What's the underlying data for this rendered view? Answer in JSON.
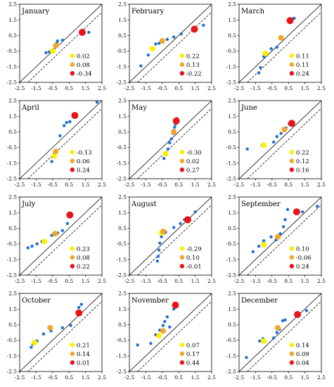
{
  "colors": {
    "small_dot": "#1f6fd1",
    "legend": [
      "#ffee00",
      "#f5a623",
      "#e8141a"
    ],
    "identity_line": "#000000",
    "dashed_line": "#000000",
    "frame": "#000000"
  },
  "chart_data": [
    {
      "type": "scatter",
      "title": "January",
      "xlim": [
        -2.5,
        2.5
      ],
      "ylim": [
        -2.5,
        2.5
      ],
      "xticks": [
        "-2.5",
        "-1.5",
        "-0.5",
        "0.5",
        "1.5",
        "2.5"
      ],
      "yticks": [
        "2.5",
        "1.5",
        "0.5",
        "-0.5",
        "-1.5",
        "-2.5"
      ],
      "small_points": [
        [
          -0.9,
          -0.6
        ],
        [
          -0.7,
          -0.55
        ],
        [
          -0.55,
          -0.5
        ],
        [
          -0.45,
          -0.4
        ],
        [
          -0.35,
          -0.1
        ],
        [
          -0.25,
          0.0
        ],
        [
          -0.2,
          0.15
        ],
        [
          0.1,
          0.2
        ],
        [
          1.7,
          0.7
        ]
      ],
      "large_points": [
        {
          "x": -0.5,
          "y": -0.5,
          "level": 0
        },
        {
          "x": -0.3,
          "y": -0.15,
          "level": 1
        },
        {
          "x": 1.3,
          "y": 0.7,
          "level": 2
        }
      ],
      "legend": [
        "0.02",
        "0.08",
        "-0.34"
      ]
    },
    {
      "type": "scatter",
      "title": "February",
      "xlim": [
        -2.5,
        2.5
      ],
      "ylim": [
        -2.5,
        2.5
      ],
      "xticks": [
        "-2.5",
        "-1.5",
        "-0.5",
        "0.5",
        "1.5",
        "2.5"
      ],
      "yticks": [
        "2.5",
        "1.5",
        "0.5",
        "-0.5",
        "-1.5",
        "-2.5"
      ],
      "small_points": [
        [
          -1.8,
          -1.45
        ],
        [
          -1.35,
          -0.75
        ],
        [
          -1.05,
          -0.35
        ],
        [
          -0.9,
          -0.05
        ],
        [
          -0.7,
          0.0
        ],
        [
          -0.2,
          0.25
        ],
        [
          0.2,
          0.4
        ],
        [
          0.65,
          0.6
        ],
        [
          1.5,
          0.9
        ],
        [
          2.0,
          1.15
        ]
      ],
      "large_points": [
        {
          "x": -1.1,
          "y": -0.35,
          "level": 0
        },
        {
          "x": -0.5,
          "y": 0.15,
          "level": 1
        },
        {
          "x": 1.45,
          "y": 0.9,
          "level": 2
        }
      ],
      "legend": [
        "0.22",
        "0.13",
        "-0.22"
      ]
    },
    {
      "type": "scatter",
      "title": "March",
      "xlim": [
        -2.5,
        2.5
      ],
      "ylim": [
        -2.5,
        2.5
      ],
      "xticks": [
        "-2.5",
        "-1.5",
        "-0.5",
        "0.5",
        "1.5",
        "2.5"
      ],
      "yticks": [
        "2.5",
        "1.5",
        "0.5",
        "-0.5",
        "-1.5",
        "-2.5"
      ],
      "small_points": [
        [
          -1.3,
          -1.9
        ],
        [
          -1.2,
          -1.55
        ],
        [
          -1.0,
          -0.85
        ],
        [
          -0.55,
          -0.35
        ],
        [
          -0.2,
          -0.25
        ],
        [
          0.1,
          0.3
        ],
        [
          0.65,
          1.35
        ],
        [
          0.75,
          1.55
        ],
        [
          0.85,
          1.6
        ]
      ],
      "large_points": [
        {
          "x": -0.9,
          "y": -0.65,
          "level": 0
        },
        {
          "x": 0.05,
          "y": 0.35,
          "level": 1
        },
        {
          "x": 0.6,
          "y": 1.45,
          "level": 2
        }
      ],
      "legend": [
        "0.11",
        "0.11",
        "0.24"
      ]
    },
    {
      "type": "scatter",
      "title": "April",
      "xlim": [
        -2.5,
        2.5
      ],
      "ylim": [
        -2.5,
        2.5
      ],
      "xticks": [
        "-2.5",
        "-1.5",
        "-0.5",
        "0.5",
        "1.5",
        "2.5"
      ],
      "yticks": [
        "2.5",
        "1.5",
        "0.5",
        "-0.5",
        "-1.5",
        "-2.5"
      ],
      "small_points": [
        [
          -0.55,
          -1.4
        ],
        [
          -0.5,
          -1.1
        ],
        [
          -0.4,
          -0.9
        ],
        [
          -0.3,
          -0.7
        ],
        [
          -0.05,
          0.25
        ],
        [
          0.2,
          0.9
        ],
        [
          0.35,
          1.1
        ],
        [
          0.55,
          1.15
        ],
        [
          2.2,
          2.4
        ]
      ],
      "large_points": [
        {
          "x": -0.4,
          "y": -1.05,
          "level": 0
        },
        {
          "x": -0.3,
          "y": -0.75,
          "level": 1
        },
        {
          "x": 0.85,
          "y": 1.55,
          "level": 2
        }
      ],
      "legend": [
        "-0.13",
        "0.06",
        "0.24"
      ]
    },
    {
      "type": "scatter",
      "title": "May",
      "xlim": [
        -2.5,
        2.5
      ],
      "ylim": [
        -2.5,
        2.5
      ],
      "xticks": [
        "-2.5",
        "-1.5",
        "-0.5",
        "0.5",
        "1.5",
        "2.5"
      ],
      "yticks": [
        "2.5",
        "1.5",
        "0.5",
        "-0.5",
        "-1.5",
        "-2.5"
      ],
      "small_points": [
        [
          -0.4,
          -1.2
        ],
        [
          -0.15,
          -0.6
        ],
        [
          -0.05,
          -0.2
        ],
        [
          0.05,
          0.05
        ],
        [
          0.15,
          0.4
        ],
        [
          0.2,
          0.6
        ],
        [
          0.25,
          0.8
        ],
        [
          0.3,
          1.0
        ],
        [
          0.35,
          1.2
        ],
        [
          0.4,
          1.35
        ]
      ],
      "large_points": [
        {
          "x": -0.3,
          "y": -0.9,
          "level": 0
        },
        {
          "x": 0.2,
          "y": 0.5,
          "level": 1
        },
        {
          "x": 0.35,
          "y": 1.2,
          "level": 2
        }
      ],
      "legend": [
        "-0.30",
        "0.02",
        "0.27"
      ]
    },
    {
      "type": "scatter",
      "title": "June",
      "xlim": [
        -2.5,
        2.5
      ],
      "ylim": [
        -2.5,
        2.5
      ],
      "xticks": [
        "-2.5",
        "-1.5",
        "-0.5",
        "0.5",
        "1.5",
        "2.5"
      ],
      "yticks": [
        "2.5",
        "1.5",
        "0.5",
        "-0.5",
        "-1.5",
        "-2.5"
      ],
      "small_points": [
        [
          -2.0,
          -0.6
        ],
        [
          -1.1,
          -0.35
        ],
        [
          -0.95,
          -0.3
        ],
        [
          -0.4,
          -0.15
        ],
        [
          -0.2,
          0.2
        ],
        [
          0.05,
          0.4
        ],
        [
          0.35,
          0.75
        ],
        [
          0.55,
          1.0
        ]
      ],
      "large_points": [
        {
          "x": -1.0,
          "y": -0.35,
          "level": 0
        },
        {
          "x": 0.25,
          "y": 0.65,
          "level": 1
        },
        {
          "x": 0.7,
          "y": 1.05,
          "level": 2
        }
      ],
      "legend": [
        "0.22",
        "0.12",
        "0.16"
      ]
    },
    {
      "type": "scatter",
      "title": "July",
      "xlim": [
        -2.5,
        2.5
      ],
      "ylim": [
        -2.5,
        2.5
      ],
      "xticks": [
        "-2.5",
        "-1.5",
        "-0.5",
        "0.5",
        "1.5",
        "2.5"
      ],
      "yticks": [
        "2.5",
        "1.5",
        "0.5",
        "-0.5",
        "-1.5",
        "-2.5"
      ],
      "small_points": [
        [
          -2.0,
          -0.75
        ],
        [
          -1.75,
          -0.65
        ],
        [
          -1.45,
          -0.5
        ],
        [
          -1.15,
          -0.35
        ],
        [
          -0.55,
          0.05
        ],
        [
          -0.2,
          0.2
        ],
        [
          0.1,
          0.35
        ],
        [
          0.4,
          0.8
        ]
      ],
      "large_points": [
        {
          "x": -1.0,
          "y": -0.35,
          "level": 0
        },
        {
          "x": -0.35,
          "y": 0.15,
          "level": 1
        },
        {
          "x": 0.55,
          "y": 1.35,
          "level": 2
        }
      ],
      "legend": [
        "0.23",
        "0.08",
        "0.22"
      ]
    },
    {
      "type": "scatter",
      "title": "August",
      "xlim": [
        -2.5,
        2.5
      ],
      "ylim": [
        -2.5,
        2.5
      ],
      "xticks": [
        "-2.5",
        "-1.5",
        "-0.5",
        "0.5",
        "1.5",
        "2.5"
      ],
      "yticks": [
        "2.5",
        "1.5",
        "0.5",
        "-0.5",
        "-1.5",
        "-2.5"
      ],
      "small_points": [
        [
          -0.8,
          -1.6
        ],
        [
          -0.75,
          -1.3
        ],
        [
          -0.7,
          -0.9
        ],
        [
          -0.65,
          -0.45
        ],
        [
          -0.55,
          -0.05
        ],
        [
          -0.4,
          0.2
        ],
        [
          -0.3,
          0.25
        ],
        [
          0.2,
          0.55
        ],
        [
          0.6,
          0.8
        ],
        [
          0.85,
          1.05
        ],
        [
          1.5,
          1.55
        ]
      ],
      "large_points": [
        {
          "x": -0.55,
          "y": 0.2,
          "level": 0
        },
        {
          "x": -0.45,
          "y": 0.3,
          "level": 1
        },
        {
          "x": 1.05,
          "y": 1.05,
          "level": 2
        }
      ],
      "legend": [
        "-0.29",
        "0.10",
        "-0.01"
      ]
    },
    {
      "type": "scatter",
      "title": "September",
      "xlim": [
        -2.5,
        2.5
      ],
      "ylim": [
        -2.5,
        2.5
      ],
      "xticks": [
        "-2.5",
        "-1.5",
        "-0.5",
        "0.5",
        "1.5",
        "2.5"
      ],
      "yticks": [
        "2.5",
        "1.5",
        "0.5",
        "-0.5",
        "-1.5",
        "-2.5"
      ],
      "small_points": [
        [
          -1.65,
          -1.0
        ],
        [
          -1.3,
          -0.65
        ],
        [
          -1.0,
          -0.3
        ],
        [
          -0.55,
          -0.05
        ],
        [
          -0.25,
          -0.25
        ],
        [
          0.0,
          0.15
        ],
        [
          0.2,
          0.6
        ],
        [
          0.3,
          1.05
        ],
        [
          0.45,
          1.7
        ],
        [
          1.35,
          1.55
        ],
        [
          2.25,
          1.9
        ]
      ],
      "large_points": [
        {
          "x": -1.0,
          "y": -0.55,
          "level": 0
        },
        {
          "x": -0.15,
          "y": -0.05,
          "level": 1
        },
        {
          "x": 1.0,
          "y": 1.55,
          "level": 2
        }
      ],
      "legend": [
        "0.10",
        "-0.06",
        "0.24"
      ]
    },
    {
      "type": "scatter",
      "title": "October",
      "xlim": [
        -2.5,
        2.5
      ],
      "ylim": [
        -2.5,
        2.5
      ],
      "xticks": [
        "-2.5",
        "-1.5",
        "-0.5",
        "0.5",
        "1.5",
        "2.5"
      ],
      "yticks": [
        "2.5",
        "1.5",
        "0.5",
        "-0.5",
        "-1.5",
        "-2.5"
      ],
      "small_points": [
        [
          -1.8,
          -0.95
        ],
        [
          -1.7,
          -0.75
        ],
        [
          -1.45,
          -0.55
        ],
        [
          -1.05,
          -0.1
        ],
        [
          -0.6,
          0.1
        ],
        [
          0.1,
          0.3
        ],
        [
          0.6,
          0.45
        ],
        [
          1.0,
          1.3
        ],
        [
          1.1,
          1.6
        ],
        [
          1.25,
          1.8
        ]
      ],
      "large_points": [
        {
          "x": -1.6,
          "y": -0.65,
          "level": 0
        },
        {
          "x": -0.65,
          "y": 0.3,
          "level": 1
        },
        {
          "x": 1.1,
          "y": 1.25,
          "level": 2
        }
      ],
      "legend": [
        "0.21",
        "0.14",
        "0.01"
      ]
    },
    {
      "type": "scatter",
      "title": "November",
      "xlim": [
        -2.5,
        2.5
      ],
      "ylim": [
        -2.5,
        2.5
      ],
      "xticks": [
        "-2.5",
        "-1.5",
        "-0.5",
        "0.5",
        "1.5",
        "2.5"
      ],
      "yticks": [
        "2.5",
        "1.5",
        "0.5",
        "-0.5",
        "-1.5",
        "-2.5"
      ],
      "small_points": [
        [
          -2.0,
          -0.8
        ],
        [
          -1.2,
          -0.7
        ],
        [
          -0.9,
          -0.15
        ],
        [
          -0.65,
          0.15
        ],
        [
          -0.45,
          0.45
        ],
        [
          -0.35,
          0.7
        ],
        [
          -0.2,
          1.0
        ],
        [
          -0.05,
          0.35
        ],
        [
          0.2,
          1.5
        ]
      ],
      "large_points": [
        {
          "x": -0.7,
          "y": -0.2,
          "level": 0
        },
        {
          "x": -0.45,
          "y": 0.1,
          "level": 1
        },
        {
          "x": 0.3,
          "y": 1.75,
          "level": 2
        }
      ],
      "legend": [
        "0.07",
        "0.17",
        "0.44"
      ]
    },
    {
      "type": "scatter",
      "title": "December",
      "xlim": [
        -2.5,
        2.5
      ],
      "ylim": [
        -2.5,
        2.5
      ],
      "xticks": [
        "-2.5",
        "-1.5",
        "-0.5",
        "0.5",
        "1.5",
        "2.5"
      ],
      "yticks": [
        "2.5",
        "1.5",
        "0.5",
        "-0.5",
        "-1.5",
        "-2.5"
      ],
      "small_points": [
        [
          -2.05,
          -1.6
        ],
        [
          -1.25,
          -0.55
        ],
        [
          -1.05,
          -0.4
        ],
        [
          -0.4,
          -0.35
        ],
        [
          -0.2,
          0.0
        ],
        [
          -0.05,
          0.2
        ],
        [
          0.15,
          0.75
        ],
        [
          0.3,
          0.8
        ],
        [
          1.6,
          1.4
        ]
      ],
      "large_points": [
        {
          "x": -1.0,
          "y": -0.55,
          "level": 0
        },
        {
          "x": -0.15,
          "y": 0.3,
          "level": 1
        },
        {
          "x": 1.05,
          "y": 1.15,
          "level": 2
        }
      ],
      "legend": [
        "0.14",
        "0.09",
        "0.04"
      ]
    }
  ]
}
